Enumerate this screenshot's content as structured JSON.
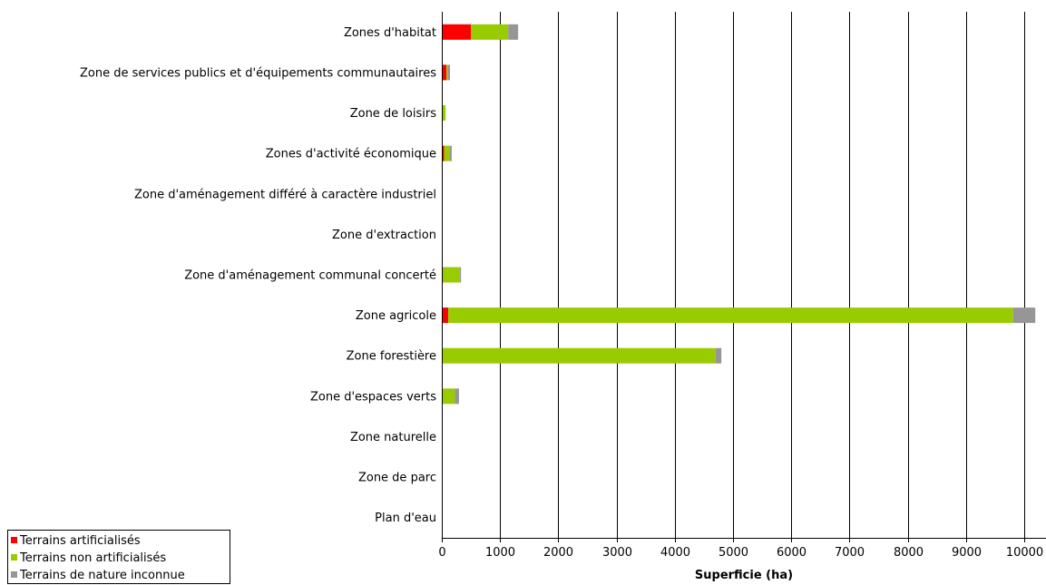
{
  "chart_data": {
    "type": "bar",
    "orientation": "horizontal",
    "stacked": true,
    "categories": [
      "Zones d'habitat",
      "Zone de services publics et d'équipements communautaires",
      "Zone de loisirs",
      "Zones d'activité économique",
      "Zone d'aménagement différé à caractère industriel",
      "Zone d'extraction",
      "Zone d'aménagement communal concerté",
      "Zone agricole",
      "Zone forestière",
      "Zone d'espaces verts",
      "Zone naturelle",
      "Zone de parc",
      "Plan d'eau"
    ],
    "series": [
      {
        "name": "Terrains artificialisés",
        "color": "#ff0000",
        "values": [
          500,
          80,
          5,
          40,
          0,
          0,
          20,
          110,
          0,
          5,
          0,
          0,
          0
        ]
      },
      {
        "name": "Terrains non artificialisés",
        "color": "#99cc00",
        "values": [
          640,
          20,
          60,
          100,
          0,
          0,
          290,
          9700,
          4700,
          220,
          0,
          0,
          0
        ]
      },
      {
        "name": "Terrains de nature inconnue",
        "color": "#969696",
        "values": [
          170,
          40,
          0,
          30,
          0,
          0,
          20,
          380,
          100,
          70,
          0,
          0,
          0
        ]
      }
    ],
    "xlabel": "Superficie (ha)",
    "ylabel": "",
    "xlim": [
      0,
      10300
    ],
    "xticks": [
      "0",
      "1000",
      "2000",
      "3000",
      "4000",
      "5000",
      "6000",
      "7000",
      "8000",
      "9000",
      "10000"
    ],
    "grid": "vertical",
    "legend_position": "bottom-left"
  }
}
